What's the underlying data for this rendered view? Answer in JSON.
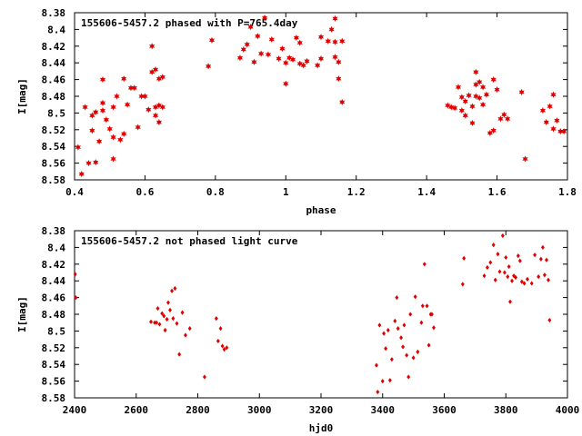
{
  "chart_data": [
    {
      "type": "scatter",
      "title": "155606-5457.2 phased with P=765.4day",
      "xlabel": "phase",
      "ylabel": "I[mag]",
      "xlim": [
        0.4,
        1.8
      ],
      "ylim": [
        8.58,
        8.38
      ],
      "y_inverted": true,
      "grid": false,
      "marker": "star",
      "color": "#e00000",
      "xticks": [
        "0.4",
        "0.6",
        "0.8",
        "1",
        "1.2",
        "1.4",
        "1.6",
        "1.8"
      ],
      "yticks": [
        "8.38",
        "8.4",
        "8.42",
        "8.44",
        "8.46",
        "8.48",
        "8.5",
        "8.52",
        "8.54",
        "8.56",
        "8.58"
      ],
      "x": [
        0.41,
        0.42,
        0.43,
        0.44,
        0.45,
        0.45,
        0.46,
        0.46,
        0.47,
        0.48,
        0.48,
        0.48,
        0.49,
        0.5,
        0.51,
        0.51,
        0.51,
        0.52,
        0.53,
        0.54,
        0.54,
        0.55,
        0.56,
        0.57,
        0.58,
        0.59,
        0.6,
        0.61,
        0.62,
        0.62,
        0.63,
        0.63,
        0.63,
        0.64,
        0.64,
        0.64,
        0.65,
        0.65,
        0.78,
        0.79,
        0.87,
        0.88,
        0.89,
        0.9,
        0.91,
        0.92,
        0.93,
        0.94,
        0.95,
        0.96,
        0.98,
        0.99,
        1.0,
        1.0,
        1.01,
        1.02,
        1.03,
        1.04,
        1.04,
        1.05,
        1.06,
        1.09,
        1.1,
        1.1,
        1.12,
        1.13,
        1.14,
        1.14,
        1.14,
        1.15,
        1.15,
        1.16,
        1.16,
        1.46,
        1.47,
        1.48,
        1.49,
        1.5,
        1.5,
        1.51,
        1.51,
        1.52,
        1.53,
        1.53,
        1.54,
        1.54,
        1.54,
        1.55,
        1.55,
        1.56,
        1.56,
        1.57,
        1.58,
        1.59,
        1.59,
        1.6,
        1.61,
        1.62,
        1.63,
        1.67,
        1.68,
        1.73,
        1.74,
        1.75,
        1.76,
        1.76,
        1.77,
        1.78,
        1.79
      ],
      "y": [
        8.541,
        8.573,
        8.493,
        8.56,
        8.503,
        8.521,
        8.499,
        8.559,
        8.534,
        8.488,
        8.46,
        8.497,
        8.508,
        8.519,
        8.493,
        8.529,
        8.555,
        8.48,
        8.532,
        8.459,
        8.525,
        8.49,
        8.47,
        8.47,
        8.517,
        8.48,
        8.48,
        8.496,
        8.42,
        8.451,
        8.503,
        8.493,
        8.448,
        8.511,
        8.491,
        8.459,
        8.457,
        8.493,
        8.444,
        8.413,
        8.434,
        8.424,
        8.418,
        8.397,
        8.439,
        8.408,
        8.429,
        8.386,
        8.43,
        8.412,
        8.435,
        8.423,
        8.465,
        8.44,
        8.434,
        8.436,
        8.41,
        8.416,
        8.441,
        8.443,
        8.438,
        8.443,
        8.409,
        8.435,
        8.414,
        8.4,
        8.433,
        8.387,
        8.415,
        8.439,
        8.459,
        8.487,
        8.414,
        8.491,
        8.493,
        8.494,
        8.469,
        8.481,
        8.497,
        8.486,
        8.503,
        8.479,
        8.512,
        8.492,
        8.48,
        8.466,
        8.451,
        8.482,
        8.463,
        8.469,
        8.49,
        8.478,
        8.524,
        8.46,
        8.521,
        8.472,
        8.507,
        8.502,
        8.507,
        8.475,
        8.555,
        8.497,
        8.511,
        8.492,
        8.478,
        8.519,
        8.509,
        8.522,
        8.522
      ]
    },
    {
      "type": "scatter",
      "title": "155606-5457.2 not phased light curve",
      "xlabel": "hjd0",
      "ylabel": "I[mag]",
      "xlim": [
        2400,
        4000
      ],
      "ylim": [
        8.58,
        8.38
      ],
      "y_inverted": true,
      "grid": false,
      "marker": "diamond",
      "color": "#e00000",
      "xticks": [
        "2400",
        "2600",
        "2800",
        "3000",
        "3200",
        "3400",
        "3600",
        "3800",
        "4000"
      ],
      "yticks": [
        "8.38",
        "8.4",
        "8.42",
        "8.44",
        "8.46",
        "8.48",
        "8.5",
        "8.52",
        "8.54",
        "8.56",
        "8.58"
      ],
      "x": [
        2402,
        2404,
        2648,
        2660,
        2666,
        2670,
        2676,
        2684,
        2690,
        2694,
        2700,
        2704,
        2710,
        2716,
        2720,
        2726,
        2732,
        2740,
        2750,
        2760,
        2774,
        2822,
        2860,
        2866,
        2874,
        2880,
        2886,
        2894,
        3380,
        3384,
        3390,
        3400,
        3404,
        3410,
        3418,
        3424,
        3430,
        3440,
        3446,
        3450,
        3460,
        3466,
        3470,
        3478,
        3484,
        3490,
        3500,
        3506,
        3514,
        3526,
        3530,
        3536,
        3544,
        3550,
        3556,
        3560,
        3566,
        3660,
        3664,
        3730,
        3740,
        3750,
        3760,
        3766,
        3774,
        3780,
        3790,
        3796,
        3800,
        3806,
        3810,
        3814,
        3820,
        3826,
        3832,
        3840,
        3846,
        3852,
        3860,
        3870,
        3884,
        3894,
        3906,
        3914,
        3920,
        3926,
        3932,
        3938,
        3942
      ],
      "y": [
        8.432,
        8.46,
        8.489,
        8.49,
        8.49,
        8.473,
        8.492,
        8.479,
        8.482,
        8.499,
        8.486,
        8.466,
        8.475,
        8.452,
        8.485,
        8.449,
        8.491,
        8.528,
        8.478,
        8.505,
        8.497,
        8.555,
        8.485,
        8.512,
        8.497,
        8.518,
        8.522,
        8.52,
        8.541,
        8.573,
        8.493,
        8.56,
        8.503,
        8.521,
        8.499,
        8.559,
        8.534,
        8.488,
        8.46,
        8.497,
        8.508,
        8.519,
        8.493,
        8.529,
        8.555,
        8.48,
        8.532,
        8.459,
        8.525,
        8.49,
        8.47,
        8.42,
        8.47,
        8.517,
        8.48,
        8.48,
        8.496,
        8.444,
        8.413,
        8.434,
        8.424,
        8.418,
        8.397,
        8.439,
        8.408,
        8.429,
        8.386,
        8.43,
        8.412,
        8.435,
        8.423,
        8.465,
        8.44,
        8.434,
        8.436,
        8.41,
        8.416,
        8.441,
        8.443,
        8.438,
        8.443,
        8.409,
        8.435,
        8.414,
        8.4,
        8.433,
        8.415,
        8.439,
        8.487
      ]
    }
  ]
}
